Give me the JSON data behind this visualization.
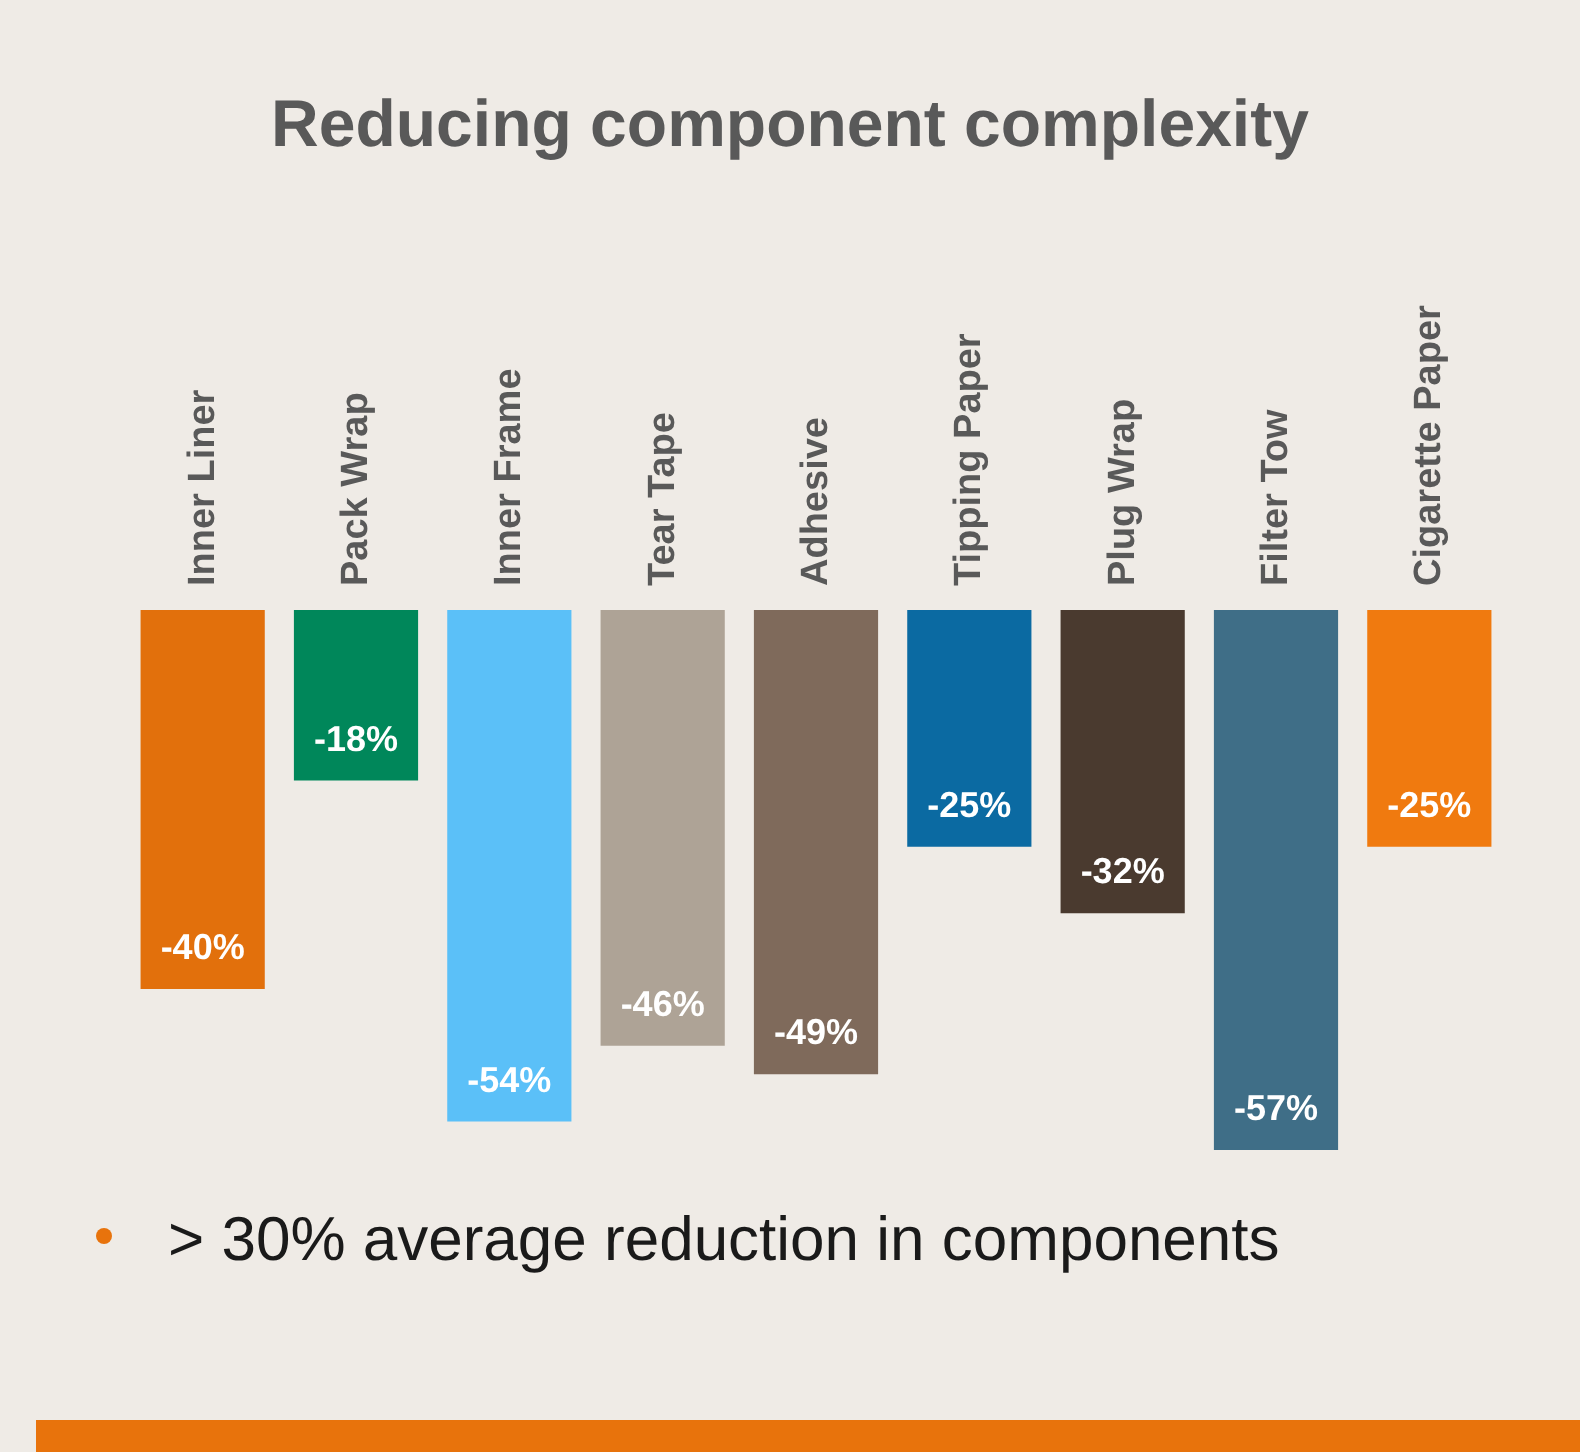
{
  "chart_data": {
    "type": "bar",
    "title": "Reducing component complexity",
    "categories": [
      "Inner Liner",
      "Pack Wrap",
      "Inner Frame",
      "Tear Tape",
      "Adhesive",
      "Tipping Paper",
      "Plug Wrap",
      "Filter Tow",
      "Cigarette Paper"
    ],
    "values": [
      -40,
      -18,
      -54,
      -46,
      -49,
      -25,
      -32,
      -57,
      -25
    ],
    "colors": [
      "#e2700c",
      "#00875a",
      "#5bc0f8",
      "#aea396",
      "#7f6a5b",
      "#0b6aa2",
      "#4a3a2f",
      "#3f6e87",
      "#f07a0f"
    ],
    "value_labels": [
      "-40%",
      "-18%",
      "-54%",
      "-46%",
      "-49%",
      "-25%",
      "-32%",
      "-57%",
      "-25%"
    ],
    "annotations": [
      "> 30% average reduction in components"
    ]
  }
}
